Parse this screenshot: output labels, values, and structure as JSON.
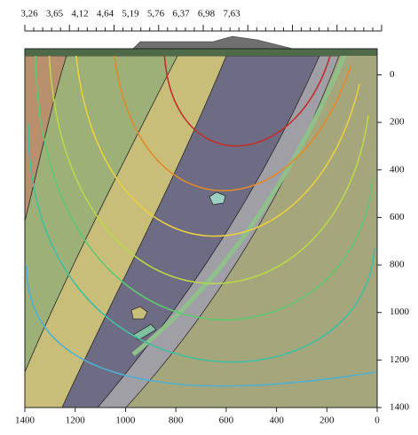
{
  "chart_data": {
    "type": "section",
    "top_labels": [
      "3,26",
      "3,65",
      "4,12",
      "4,64",
      "5,19",
      "5,76",
      "6,37",
      "6,98",
      "7,63"
    ],
    "xlim": [
      1400,
      0
    ],
    "xticks": [
      1400,
      1200,
      1000,
      800,
      600,
      400,
      200,
      0
    ],
    "ylim": [
      -110,
      1400
    ],
    "yticks": [
      0,
      200,
      400,
      600,
      800,
      1000,
      1200,
      1400
    ]
  }
}
